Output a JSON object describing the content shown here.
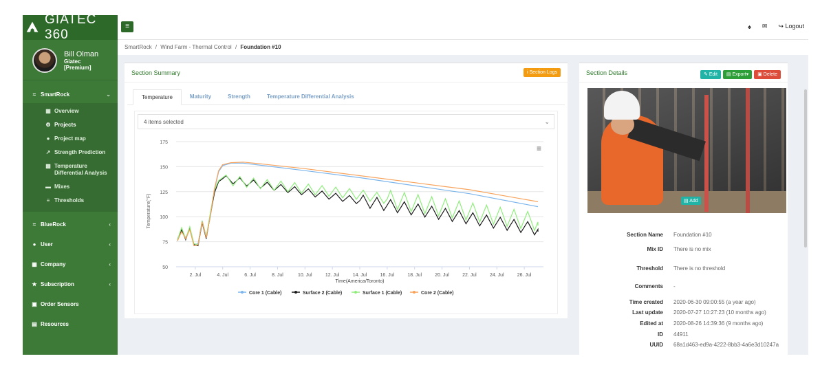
{
  "app": {
    "logo_text": "GIATEC 360"
  },
  "user": {
    "name": "Bill Olman",
    "company": "Giatec",
    "plan": "[Premium]"
  },
  "sidebar": {
    "smartrock": {
      "label": "SmartRock",
      "items": [
        {
          "label": "Overview",
          "icon": "grid-icon"
        },
        {
          "label": "Projects",
          "icon": "sitemap-icon"
        },
        {
          "label": "Project map",
          "icon": "globe-icon"
        },
        {
          "label": "Strength Prediction",
          "icon": "line-chart-icon"
        },
        {
          "label": "Temperature Differential Analysis",
          "icon": "bar-chart-icon"
        },
        {
          "label": "Mixes",
          "icon": "truck-icon"
        },
        {
          "label": "Thresholds",
          "icon": "sliders-icon"
        }
      ]
    },
    "sections": [
      {
        "label": "BlueRock"
      },
      {
        "label": "User"
      },
      {
        "label": "Company"
      },
      {
        "label": "Subscription"
      },
      {
        "label": "Order Sensors"
      },
      {
        "label": "Resources"
      }
    ]
  },
  "topbar": {
    "logout": "Logout"
  },
  "breadcrumb": {
    "b1": "SmartRock",
    "b2": "Wind Farm - Thermal Control",
    "b3": "Foundation #10",
    "sep": "/"
  },
  "summary": {
    "title": "Section Summary",
    "logs": "Section Logs",
    "tabs": [
      "Temperature",
      "Maturity",
      "Strength",
      "Temperature Differential Analysis"
    ],
    "select": "4 items selected"
  },
  "details": {
    "title": "Section Details",
    "edit": "Edit",
    "export": "Export",
    "delete": "Delete",
    "add": "Add",
    "rows": [
      {
        "k": "Section Name",
        "v": "Foundation #10"
      },
      {
        "k": "Mix ID",
        "v": "There is no mix"
      },
      {
        "k": "Threshold",
        "v": "There is no threshold"
      },
      {
        "k": "Comments",
        "v": "-"
      },
      {
        "k": "Time created",
        "v": "2020-06-30 09:00:55 (a year ago)"
      },
      {
        "k": "Last update",
        "v": "2020-07-27 10:27:23 (10 months ago)"
      },
      {
        "k": "Edited at",
        "v": "2020-08-26 14:39:36 (9 months ago)"
      },
      {
        "k": "ID",
        "v": "44911"
      },
      {
        "k": "UUID",
        "v": "68a1d463-ed9a-4222-8bb3-4a6e3d10247a"
      }
    ]
  },
  "colors": {
    "core1": "#7cb5ec",
    "surface2": "#1a1a1a",
    "surface1": "#90ed7d",
    "core2": "#f7a35c"
  },
  "chart_data": {
    "type": "line",
    "xlabel": "Time(America/Toronto)",
    "ylabel": "Temperature(°F)",
    "ylim": [
      50,
      175
    ],
    "yticks": [
      50,
      75,
      100,
      125,
      150,
      175
    ],
    "xticks": [
      "2. Jul",
      "4. Jul",
      "6. Jul",
      "8. Jul",
      "10. Jul",
      "12. Jul",
      "14. Jul",
      "16. Jul",
      "18. Jul",
      "20. Jul",
      "22. Jul",
      "24. Jul",
      "26. Jul"
    ],
    "x_start_day": 0.6,
    "x_end_day": 27.4,
    "series": [
      {
        "name": "Core 1 (Cable)",
        "color": "#7cb5ec",
        "points": [
          [
            0.7,
            78
          ],
          [
            1.0,
            86
          ],
          [
            1.3,
            79
          ],
          [
            1.6,
            88
          ],
          [
            1.9,
            72
          ],
          [
            2.2,
            73
          ],
          [
            2.5,
            96
          ],
          [
            2.8,
            80
          ],
          [
            3.1,
            100
          ],
          [
            3.4,
            127
          ],
          [
            3.7,
            145
          ],
          [
            4.0,
            151
          ],
          [
            4.6,
            153.5
          ],
          [
            5.5,
            153.5
          ],
          [
            7,
            151
          ],
          [
            10,
            146
          ],
          [
            14,
            139
          ],
          [
            18,
            131
          ],
          [
            22,
            123
          ],
          [
            27,
            110
          ]
        ]
      },
      {
        "name": "Surface 2 (Cable)",
        "color": "#1a1a1a",
        "wave": true
      },
      {
        "name": "Surface 1 (Cable)",
        "color": "#90ed7d",
        "wave": true
      },
      {
        "name": "Core 2 (Cable)",
        "color": "#f7a35c",
        "points": [
          [
            0.7,
            76
          ],
          [
            1.0,
            85
          ],
          [
            1.3,
            78
          ],
          [
            1.6,
            87
          ],
          [
            1.9,
            71
          ],
          [
            2.2,
            72
          ],
          [
            2.5,
            95
          ],
          [
            2.8,
            79
          ],
          [
            3.1,
            101
          ],
          [
            3.4,
            128
          ],
          [
            3.7,
            146
          ],
          [
            4.0,
            152
          ],
          [
            4.6,
            154
          ],
          [
            5.5,
            154.5
          ],
          [
            7,
            152.5
          ],
          [
            10,
            148
          ],
          [
            14,
            141
          ],
          [
            18,
            134
          ],
          [
            22,
            127
          ],
          [
            27,
            115
          ]
        ]
      }
    ]
  }
}
